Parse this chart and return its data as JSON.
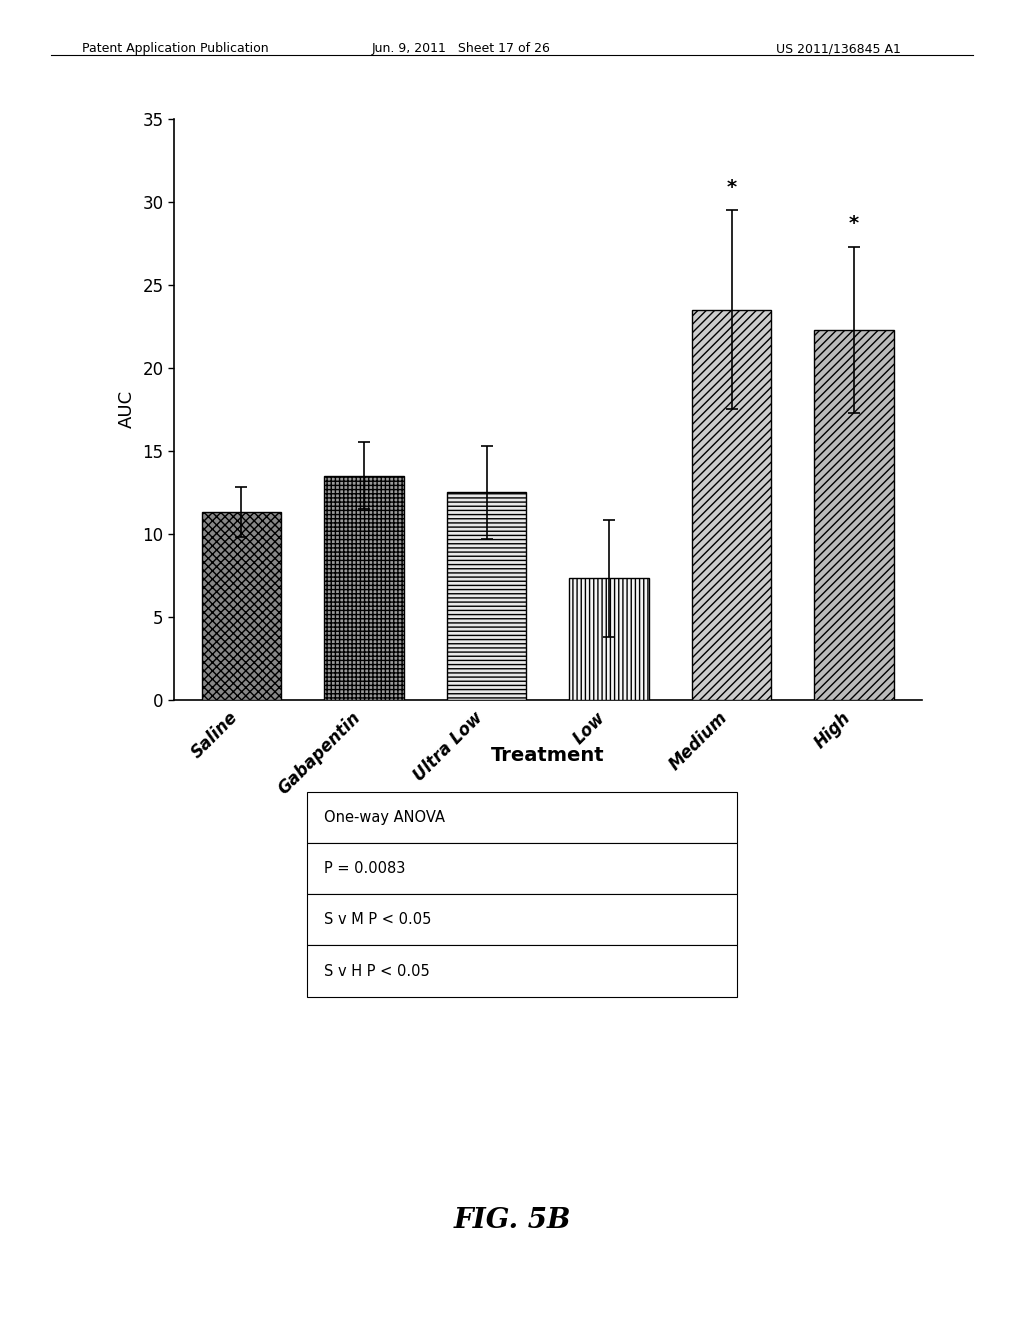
{
  "categories": [
    "Saline",
    "Gabapentin",
    "Ultra Low",
    "Low",
    "Medium",
    "High"
  ],
  "values": [
    11.3,
    13.5,
    12.5,
    7.3,
    23.5,
    22.3
  ],
  "errors": [
    1.5,
    2.0,
    2.8,
    3.5,
    6.0,
    5.0
  ],
  "significance": [
    false,
    false,
    false,
    false,
    true,
    true
  ],
  "ylabel": "AUC",
  "xlabel": "Treatment",
  "ylim": [
    0,
    35
  ],
  "yticks": [
    0,
    5,
    10,
    15,
    20,
    25,
    30,
    35
  ],
  "bar_width": 0.65,
  "table_data": [
    "One-way ANOVA",
    "P = 0.0083",
    "S v M P < 0.05",
    "S v H P < 0.05"
  ],
  "fig_caption": "FIG. 5B",
  "header_left": "Patent Application Publication",
  "header_mid": "Jun. 9, 2011   Sheet 17 of 26",
  "header_right": "US 2011/136845 A1"
}
